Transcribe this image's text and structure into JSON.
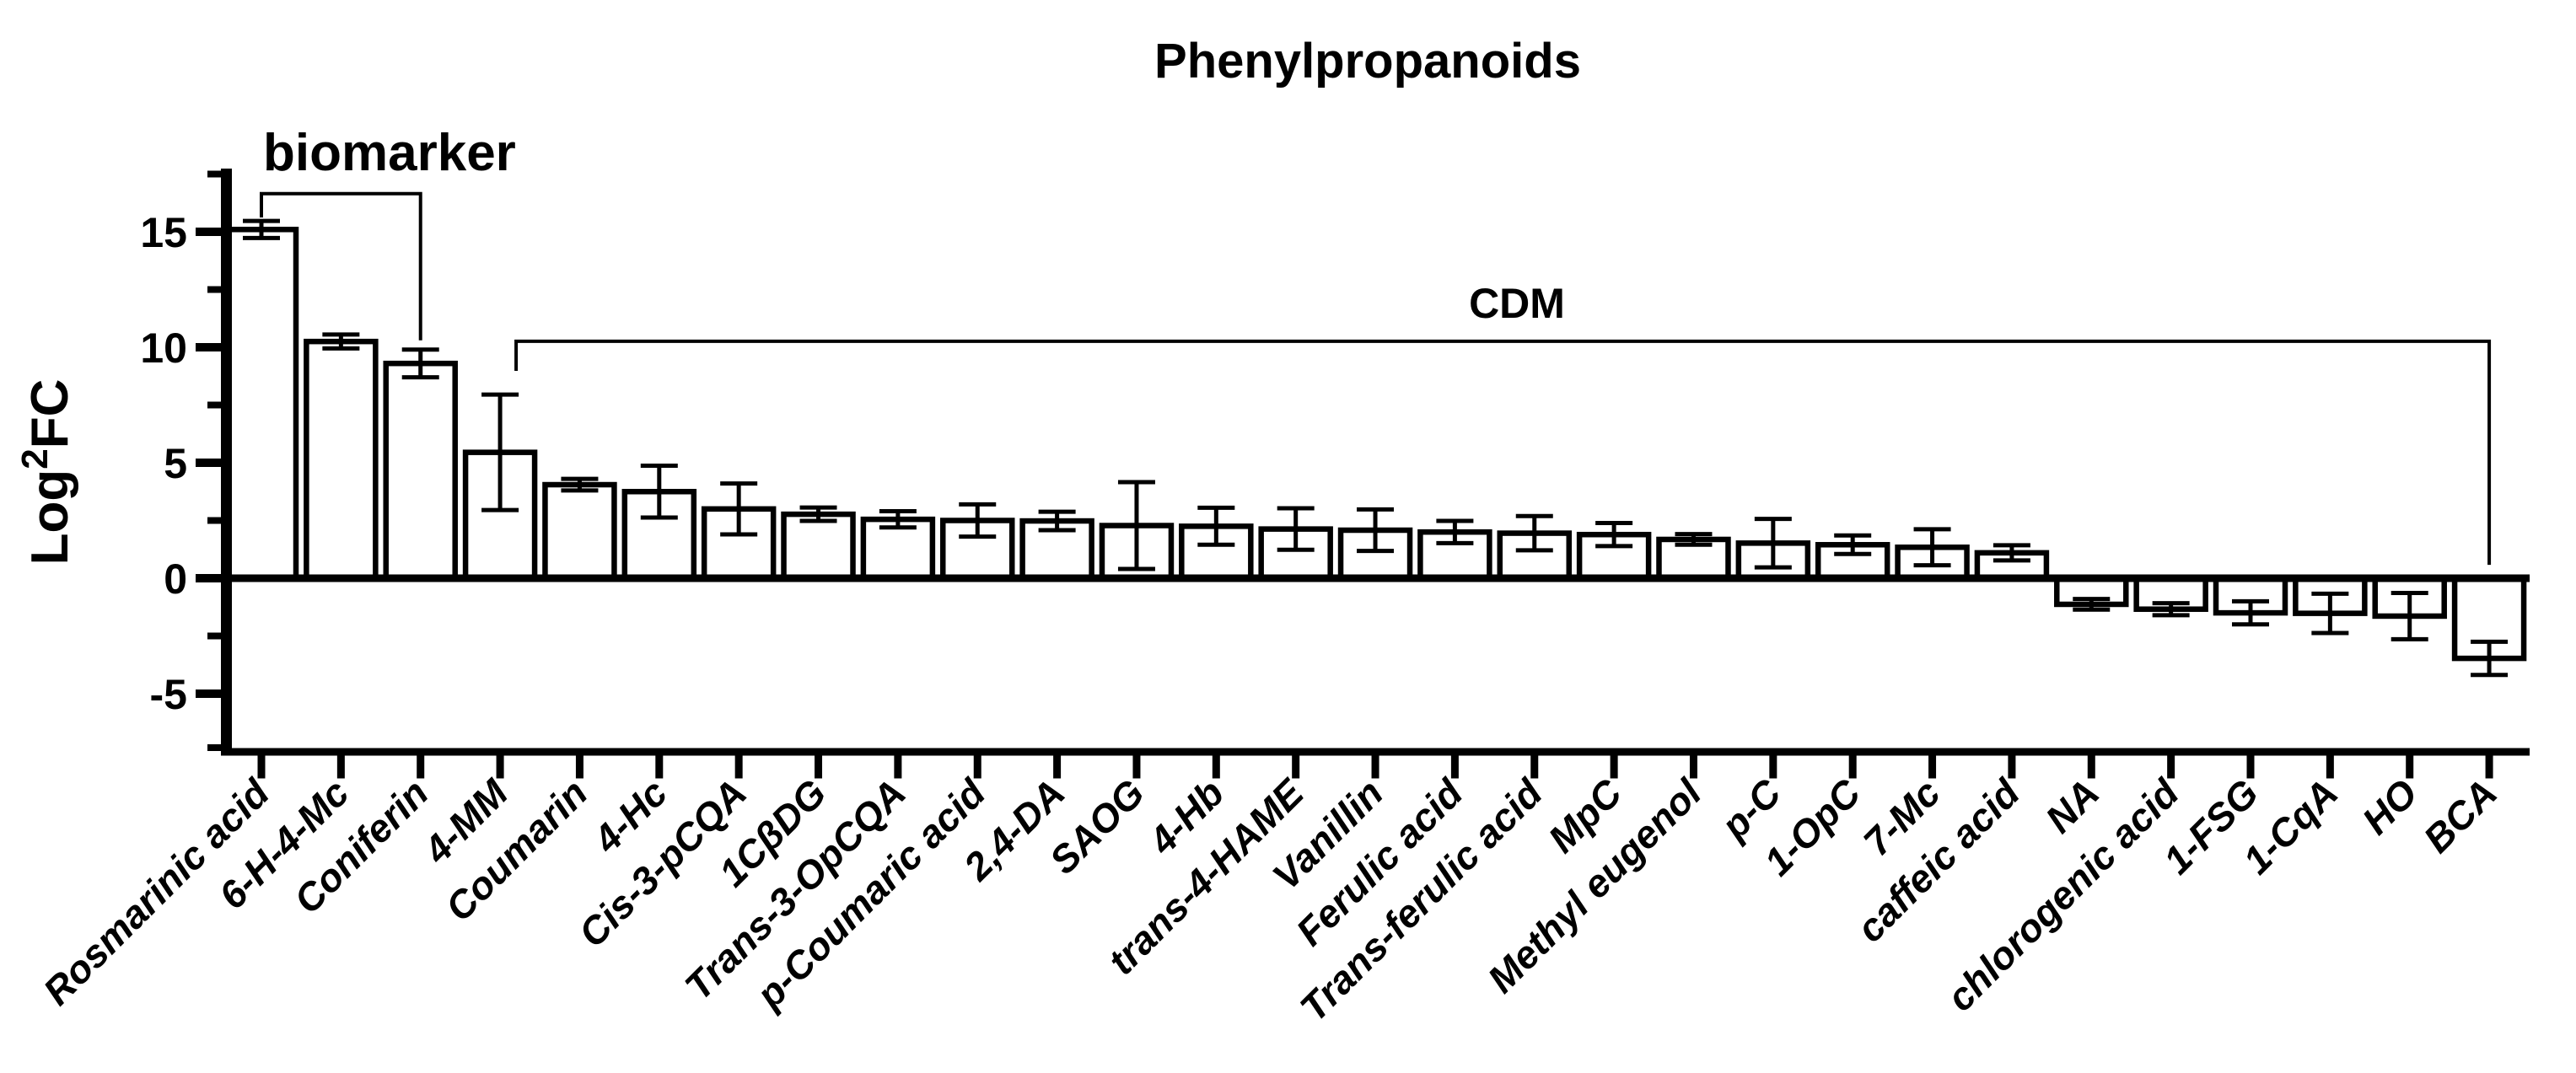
{
  "title": "Phenylpropanoids",
  "colors": {
    "foreground": "#000000",
    "background": "#ffffff",
    "bar_fill": "#ffffff",
    "bar_stroke": "#000000"
  },
  "y_axis": {
    "title_main": "Log",
    "title_sup": "2",
    "title_rest": "FC",
    "major_tick_labels": [
      "15",
      "10",
      "5",
      "0",
      "-5"
    ]
  },
  "annotations": {
    "biomarker": {
      "label": "biomarker",
      "from": "Rosmarinic acid",
      "to": "Coniferin",
      "top_value": 16.65,
      "left_end_value": 15.62,
      "right_end_value": 10.3
    },
    "cdm": {
      "label": "CDM",
      "from": "4-MM",
      "to": "BCA",
      "top_value": 10.26,
      "left_end_value": 8.98,
      "right_end_value": 0.58
    }
  },
  "chart_data": {
    "type": "bar",
    "title": "Phenylpropanoids",
    "ylabel": "Log2FC",
    "xlabel": "",
    "ylim": [
      -7.5,
      17.8
    ],
    "yticks_major": [
      15,
      10,
      5,
      0,
      -5
    ],
    "yticks_minor": [
      17.5,
      12.5,
      7.5,
      2.5,
      -2.5,
      -7.5
    ],
    "grid": false,
    "legend": "none",
    "bar_fill": "#ffffff",
    "bar_stroke": "#000000",
    "categories": [
      "Rosmarinic acid",
      "6-H-4-Mc",
      "Coniferin",
      "4-MM",
      "Coumarin",
      "4-Hc",
      "Cis-3-pCQA",
      "1CβDG",
      "Trans-3-OpCQA",
      "p-Coumaric acid",
      "2,4-DA",
      "SAOG",
      "4-Hb",
      "trans-4-HAME",
      "Vanillin",
      "Ferulic acid",
      "Trans-ferulic acid",
      "MpC",
      "Methyl eugenol",
      "p-C",
      "1-OpC",
      "7-Mc",
      "caffeic acid",
      "NA",
      "chlorogenic acid",
      "1-FSG",
      "1-CqA",
      "HO",
      "BCA"
    ],
    "values": [
      15.1,
      10.25,
      9.3,
      5.45,
      4.05,
      3.75,
      3.0,
      2.77,
      2.55,
      2.5,
      2.48,
      2.28,
      2.25,
      2.13,
      2.08,
      2.0,
      1.95,
      1.89,
      1.68,
      1.52,
      1.45,
      1.34,
      1.1,
      -1.13,
      -1.34,
      -1.5,
      -1.52,
      -1.64,
      -3.47
    ],
    "errors": [
      0.37,
      0.3,
      0.6,
      2.5,
      0.25,
      1.12,
      1.1,
      0.29,
      0.35,
      0.7,
      0.4,
      1.88,
      0.8,
      0.9,
      0.9,
      0.48,
      0.74,
      0.5,
      0.23,
      1.05,
      0.4,
      0.78,
      0.33,
      0.23,
      0.26,
      0.5,
      0.85,
      1.0,
      0.72
    ]
  }
}
